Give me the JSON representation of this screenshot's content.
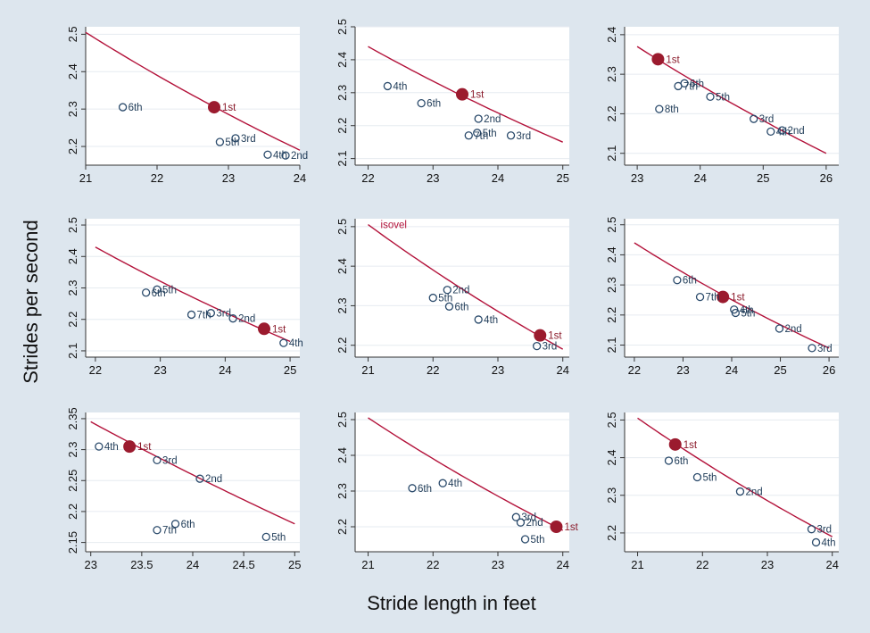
{
  "figure": {
    "xlabel": "Stride length in feet",
    "ylabel": "Strides per second",
    "colors": {
      "background": "#dde6ee",
      "plot_bg": "#ffffff",
      "grid": "#e6ebf0",
      "curve": "#b3123a",
      "first_marker": "#9b1b2e",
      "open_marker": "#2a4a6b"
    }
  },
  "chart_data": [
    {
      "type": "scatter",
      "xlim": [
        21,
        24
      ],
      "ylim": [
        2.15,
        2.52
      ],
      "xticks": [
        21,
        22,
        23,
        24
      ],
      "xtick_labels": [
        "21",
        "22",
        "23",
        "24"
      ],
      "yticks": [
        2.2,
        2.3,
        2.4,
        2.5
      ],
      "ytick_labels": [
        "2.2",
        "2.3",
        "2.4",
        "2.5"
      ],
      "curve": {
        "x": [
          21,
          24
        ],
        "y": [
          2.505,
          2.19
        ]
      },
      "points": [
        {
          "label": "1st",
          "x": 22.8,
          "y": 2.305,
          "first": true
        },
        {
          "label": "6th",
          "x": 21.52,
          "y": 2.305
        },
        {
          "label": "3rd",
          "x": 23.1,
          "y": 2.222
        },
        {
          "label": "5th",
          "x": 22.88,
          "y": 2.212
        },
        {
          "label": "4th",
          "x": 23.55,
          "y": 2.178
        },
        {
          "label": "2nd",
          "x": 23.8,
          "y": 2.176
        }
      ]
    },
    {
      "type": "scatter",
      "xlim": [
        21.8,
        25.1
      ],
      "ylim": [
        2.08,
        2.5
      ],
      "xticks": [
        22,
        23,
        24,
        25
      ],
      "xtick_labels": [
        "22",
        "23",
        "24",
        "25"
      ],
      "yticks": [
        2.1,
        2.2,
        2.3,
        2.4,
        2.5
      ],
      "ytick_labels": [
        "2.1",
        "2.2",
        "2.3",
        "2.4",
        "2.5"
      ],
      "curve": {
        "x": [
          22,
          25
        ],
        "y": [
          2.44,
          2.15
        ]
      },
      "points": [
        {
          "label": "1st",
          "x": 23.45,
          "y": 2.295,
          "first": true
        },
        {
          "label": "4th",
          "x": 22.3,
          "y": 2.32
        },
        {
          "label": "6th",
          "x": 22.82,
          "y": 2.268
        },
        {
          "label": "2nd",
          "x": 23.7,
          "y": 2.221
        },
        {
          "label": "5th",
          "x": 23.68,
          "y": 2.178
        },
        {
          "label": "7th",
          "x": 23.55,
          "y": 2.17
        },
        {
          "label": "3rd",
          "x": 24.2,
          "y": 2.17
        }
      ]
    },
    {
      "type": "scatter",
      "xlim": [
        22.8,
        26.2
      ],
      "ylim": [
        2.07,
        2.42
      ],
      "xticks": [
        23,
        24,
        25,
        26
      ],
      "xtick_labels": [
        "23",
        "24",
        "25",
        "26"
      ],
      "yticks": [
        2.1,
        2.2,
        2.3,
        2.4
      ],
      "ytick_labels": [
        "2.1",
        "2.2",
        "2.3",
        "2.4"
      ],
      "curve": {
        "x": [
          23,
          26
        ],
        "y": [
          2.37,
          2.1
        ]
      },
      "points": [
        {
          "label": "1st",
          "x": 23.33,
          "y": 2.338,
          "first": true
        },
        {
          "label": "6th",
          "x": 23.75,
          "y": 2.277
        },
        {
          "label": "7th",
          "x": 23.65,
          "y": 2.27
        },
        {
          "label": "5th",
          "x": 24.16,
          "y": 2.243
        },
        {
          "label": "8th",
          "x": 23.35,
          "y": 2.212
        },
        {
          "label": "3rd",
          "x": 24.85,
          "y": 2.187
        },
        {
          "label": "4th",
          "x": 25.12,
          "y": 2.155
        },
        {
          "label": "2nd",
          "x": 25.3,
          "y": 2.158
        }
      ]
    },
    {
      "type": "scatter",
      "xlim": [
        21.85,
        25.15
      ],
      "ylim": [
        2.08,
        2.52
      ],
      "xticks": [
        22,
        23,
        24,
        25
      ],
      "xtick_labels": [
        "22",
        "23",
        "24",
        "25"
      ],
      "yticks": [
        2.1,
        2.2,
        2.3,
        2.4,
        2.5
      ],
      "ytick_labels": [
        "2.1",
        "2.2",
        "2.3",
        "2.4",
        "2.5"
      ],
      "curve": {
        "x": [
          22,
          25
        ],
        "y": [
          2.43,
          2.13
        ]
      },
      "points": [
        {
          "label": "1st",
          "x": 24.6,
          "y": 2.17,
          "first": true
        },
        {
          "label": "5th",
          "x": 22.95,
          "y": 2.295
        },
        {
          "label": "6th",
          "x": 22.78,
          "y": 2.285
        },
        {
          "label": "7th",
          "x": 23.48,
          "y": 2.215
        },
        {
          "label": "3rd",
          "x": 23.78,
          "y": 2.22
        },
        {
          "label": "2nd",
          "x": 24.12,
          "y": 2.203
        },
        {
          "label": "4th",
          "x": 24.9,
          "y": 2.125
        }
      ]
    },
    {
      "type": "scatter",
      "xlim": [
        20.8,
        24.1
      ],
      "ylim": [
        2.17,
        2.52
      ],
      "xticks": [
        21,
        22,
        23,
        24
      ],
      "xtick_labels": [
        "21",
        "22",
        "23",
        "24"
      ],
      "yticks": [
        2.2,
        2.3,
        2.4,
        2.5
      ],
      "ytick_labels": [
        "2.2",
        "2.3",
        "2.4",
        "2.5"
      ],
      "curve": {
        "x": [
          21,
          24
        ],
        "y": [
          2.505,
          2.19
        ],
        "label": "isovel"
      },
      "points": [
        {
          "label": "1st",
          "x": 23.65,
          "y": 2.225,
          "first": true
        },
        {
          "label": "2nd",
          "x": 22.22,
          "y": 2.34
        },
        {
          "label": "5th",
          "x": 22.0,
          "y": 2.32
        },
        {
          "label": "6th",
          "x": 22.25,
          "y": 2.298
        },
        {
          "label": "4th",
          "x": 22.7,
          "y": 2.265
        },
        {
          "label": "3rd",
          "x": 23.6,
          "y": 2.198
        }
      ]
    },
    {
      "type": "scatter",
      "xlim": [
        21.8,
        26.2
      ],
      "ylim": [
        2.06,
        2.52
      ],
      "xticks": [
        22,
        23,
        24,
        25,
        26
      ],
      "xtick_labels": [
        "22",
        "23",
        "24",
        "25",
        "26"
      ],
      "yticks": [
        2.1,
        2.2,
        2.3,
        2.4,
        2.5
      ],
      "ytick_labels": [
        "2.1",
        "2.2",
        "2.3",
        "2.4",
        "2.5"
      ],
      "curve": {
        "x": [
          22,
          26
        ],
        "y": [
          2.44,
          2.09
        ]
      },
      "points": [
        {
          "label": "1st",
          "x": 23.82,
          "y": 2.26,
          "first": true
        },
        {
          "label": "6th",
          "x": 22.88,
          "y": 2.316
        },
        {
          "label": "7th",
          "x": 23.35,
          "y": 2.26
        },
        {
          "label": "4th",
          "x": 24.05,
          "y": 2.218
        },
        {
          "label": "5th",
          "x": 24.08,
          "y": 2.207
        },
        {
          "label": "2nd",
          "x": 24.98,
          "y": 2.155
        },
        {
          "label": "3rd",
          "x": 25.65,
          "y": 2.09
        }
      ]
    },
    {
      "type": "scatter",
      "xlim": [
        22.95,
        25.05
      ],
      "ylim": [
        2.135,
        2.36
      ],
      "xticks": [
        23,
        23.5,
        24,
        24.5,
        25
      ],
      "xtick_labels": [
        "23",
        "23.5",
        "24",
        "24.5",
        "25"
      ],
      "yticks": [
        2.15,
        2.2,
        2.25,
        2.3,
        2.35
      ],
      "ytick_labels": [
        "2.15",
        "2.2",
        "2.25",
        "2.3",
        "2.35"
      ],
      "curve": {
        "x": [
          23,
          25
        ],
        "y": [
          2.345,
          2.18
        ]
      },
      "points": [
        {
          "label": "1st",
          "x": 23.38,
          "y": 2.305,
          "first": true
        },
        {
          "label": "4th",
          "x": 23.08,
          "y": 2.305
        },
        {
          "label": "3rd",
          "x": 23.65,
          "y": 2.283
        },
        {
          "label": "2nd",
          "x": 24.07,
          "y": 2.253
        },
        {
          "label": "6th",
          "x": 23.83,
          "y": 2.18
        },
        {
          "label": "7th",
          "x": 23.65,
          "y": 2.17
        },
        {
          "label": "5th",
          "x": 24.72,
          "y": 2.159
        }
      ]
    },
    {
      "type": "scatter",
      "xlim": [
        20.8,
        24.1
      ],
      "ylim": [
        2.13,
        2.52
      ],
      "xticks": [
        21,
        22,
        23,
        24
      ],
      "xtick_labels": [
        "21",
        "22",
        "23",
        "24"
      ],
      "yticks": [
        2.2,
        2.3,
        2.4,
        2.5
      ],
      "ytick_labels": [
        "2.2",
        "2.3",
        "2.4",
        "2.5"
      ],
      "curve": {
        "x": [
          21,
          24
        ],
        "y": [
          2.505,
          2.19
        ]
      },
      "points": [
        {
          "label": "1st",
          "x": 23.9,
          "y": 2.2,
          "first": true
        },
        {
          "label": "4th",
          "x": 22.15,
          "y": 2.322
        },
        {
          "label": "6th",
          "x": 21.68,
          "y": 2.308
        },
        {
          "label": "3rd",
          "x": 23.28,
          "y": 2.227
        },
        {
          "label": "2nd",
          "x": 23.35,
          "y": 2.212
        },
        {
          "label": "5th",
          "x": 23.42,
          "y": 2.165
        }
      ]
    },
    {
      "type": "scatter",
      "xlim": [
        20.8,
        24.1
      ],
      "ylim": [
        2.15,
        2.52
      ],
      "xticks": [
        21,
        22,
        23,
        24
      ],
      "xtick_labels": [
        "21",
        "22",
        "23",
        "24"
      ],
      "yticks": [
        2.2,
        2.3,
        2.4,
        2.5
      ],
      "ytick_labels": [
        "2.2",
        "2.3",
        "2.4",
        "2.5"
      ],
      "curve": {
        "x": [
          21,
          24
        ],
        "y": [
          2.505,
          2.19
        ]
      },
      "points": [
        {
          "label": "1st",
          "x": 21.58,
          "y": 2.435,
          "first": true
        },
        {
          "label": "6th",
          "x": 21.48,
          "y": 2.392
        },
        {
          "label": "5th",
          "x": 21.92,
          "y": 2.348
        },
        {
          "label": "2nd",
          "x": 22.58,
          "y": 2.31
        },
        {
          "label": "3rd",
          "x": 23.68,
          "y": 2.21
        },
        {
          "label": "4th",
          "x": 23.75,
          "y": 2.175
        }
      ]
    }
  ]
}
